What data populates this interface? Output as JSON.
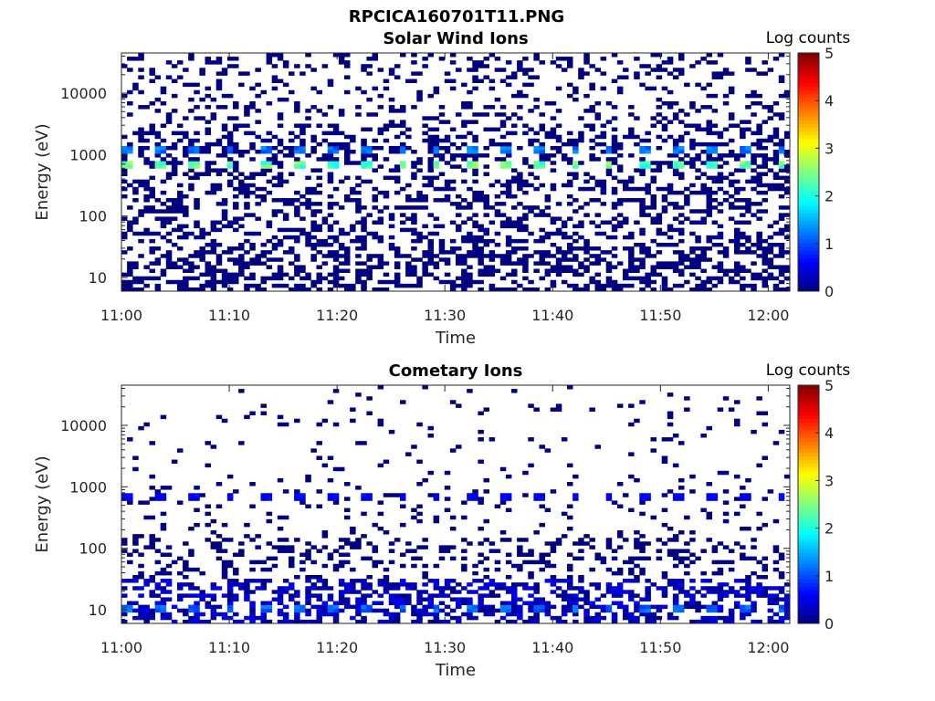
{
  "figure_title": "RPCICA160701T11.PNG",
  "chart_data": [
    {
      "type": "heatmap",
      "title": "Solar Wind Ions",
      "xlabel": "Time",
      "ylabel": "Energy (eV)",
      "x_ticks": [
        "11:00",
        "11:10",
        "11:20",
        "11:30",
        "11:40",
        "11:50",
        "12:00"
      ],
      "x_range": [
        "11:00",
        "12:02"
      ],
      "y_scale": "log",
      "y_ticks": [
        "10",
        "100",
        "1000",
        "10000"
      ],
      "y_range": [
        6,
        45000
      ],
      "colorbar_label": "Log counts",
      "colorbar_ticks": [
        "0",
        "1",
        "2",
        "3",
        "4",
        "5"
      ],
      "colorbar_range": [
        0,
        5
      ],
      "colormap": "jet",
      "hot_bands": [
        {
          "energy_eV": 700,
          "peak_log_counts": 2.7,
          "period_min": 3.2
        },
        {
          "energy_eV": 1150,
          "peak_log_counts": 1.4,
          "period_min": 3.2
        }
      ],
      "background_log_counts": 0
    },
    {
      "type": "heatmap",
      "title": "Cometary Ions",
      "xlabel": "Time",
      "ylabel": "Energy (eV)",
      "x_ticks": [
        "11:00",
        "11:10",
        "11:20",
        "11:30",
        "11:40",
        "11:50",
        "12:00"
      ],
      "x_range": [
        "11:00",
        "12:02"
      ],
      "y_scale": "log",
      "y_ticks": [
        "10",
        "100",
        "1000",
        "10000"
      ],
      "y_range": [
        6,
        45000
      ],
      "colorbar_label": "Log counts",
      "colorbar_ticks": [
        "0",
        "1",
        "2",
        "3",
        "4",
        "5"
      ],
      "colorbar_range": [
        0,
        5
      ],
      "colormap": "jet",
      "hot_bands": [
        {
          "energy_eV": 700,
          "peak_log_counts": 0.7,
          "period_min": 3.2
        },
        {
          "energy_eV": 10,
          "peak_log_counts": 1.3,
          "period_min": 3.2
        }
      ],
      "background_log_counts": 0
    }
  ]
}
